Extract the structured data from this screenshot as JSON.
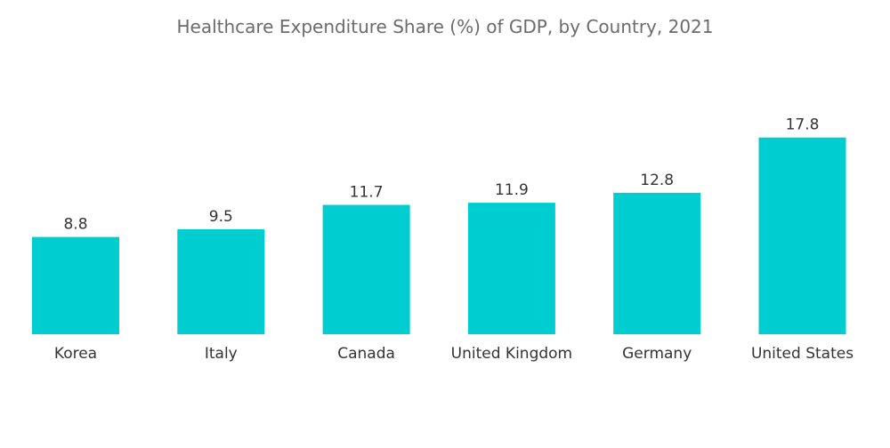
{
  "chart_data": {
    "type": "bar",
    "title": "Healthcare Expenditure Share (%) of GDP, by Country, 2021",
    "xlabel": "",
    "ylabel": "",
    "categories": [
      "Korea",
      "Italy",
      "Canada",
      "United Kingdom",
      "Germany",
      "United States"
    ],
    "values": [
      8.8,
      9.5,
      11.7,
      11.9,
      12.8,
      17.8
    ],
    "value_labels": [
      "8.8",
      "9.5",
      "11.7",
      "11.9",
      "12.8",
      "17.8"
    ],
    "ylim": [
      0,
      18.5
    ],
    "grid": false,
    "legend": "none",
    "bar_color": "#00CDD0"
  }
}
